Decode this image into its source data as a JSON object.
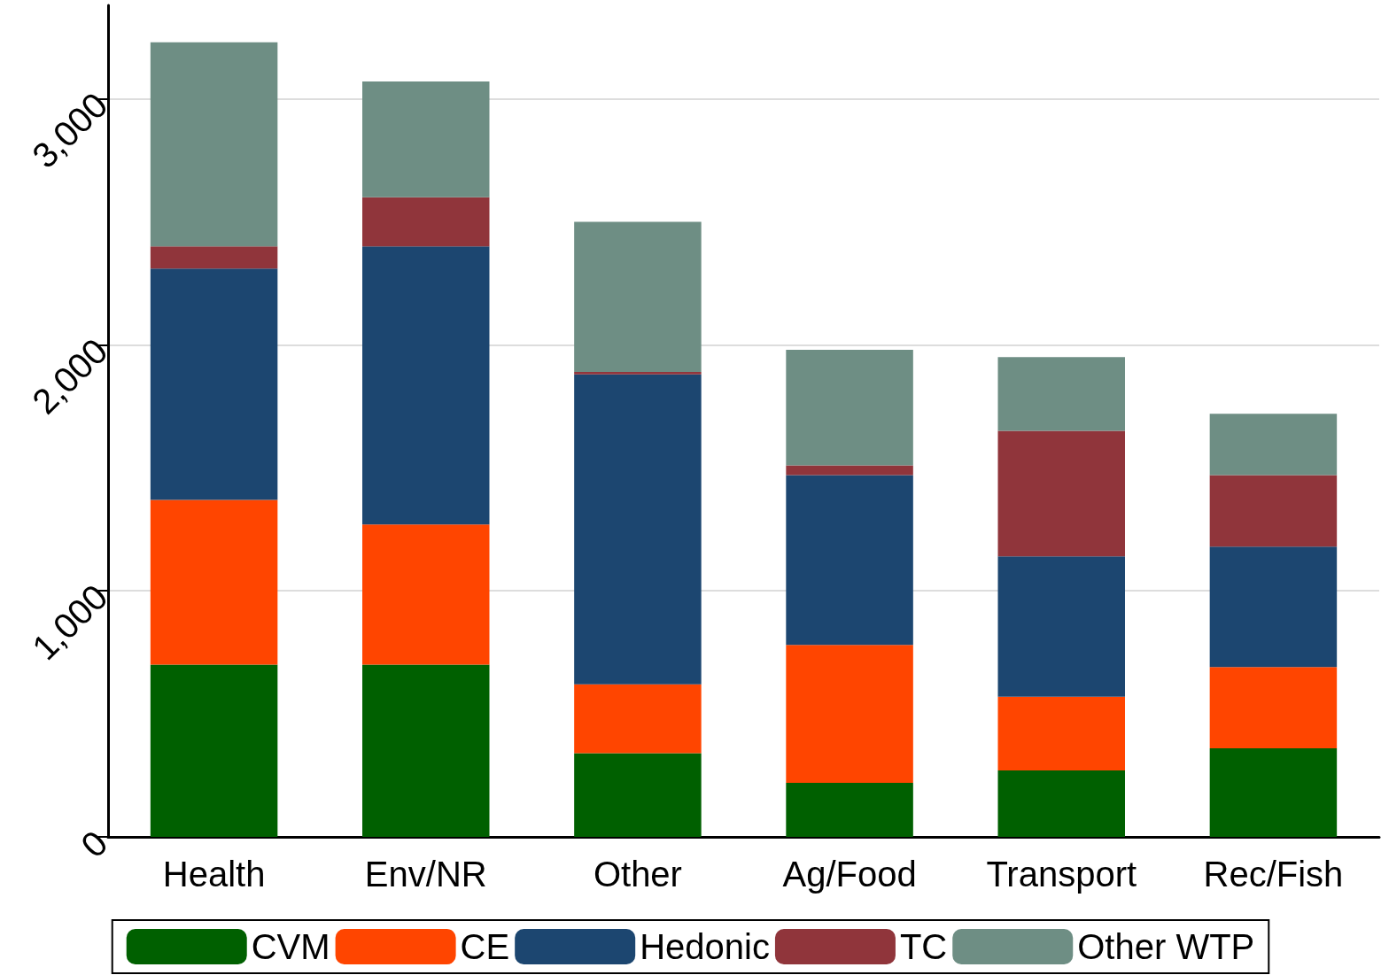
{
  "chart_data": {
    "type": "bar",
    "stacked": true,
    "categories": [
      "Health",
      "Env/NR",
      "Other",
      "Ag/Food",
      "Transport",
      "Rec/Fish"
    ],
    "series": [
      {
        "name": "CVM",
        "color": "#006000",
        "values": [
          700,
          700,
          340,
          220,
          270,
          360
        ]
      },
      {
        "name": "CE",
        "color": "#ff4500",
        "values": [
          670,
          570,
          280,
          560,
          300,
          330
        ]
      },
      {
        "name": "Hedonic",
        "color": "#1c4670",
        "values": [
          940,
          1130,
          1260,
          690,
          570,
          490
        ]
      },
      {
        "name": "TC",
        "color": "#90353b",
        "values": [
          90,
          200,
          10,
          40,
          510,
          290
        ]
      },
      {
        "name": "Other WTP",
        "color": "#6e8e84",
        "values": [
          830,
          470,
          610,
          470,
          300,
          250
        ]
      }
    ],
    "ylim": [
      0,
      3380
    ],
    "yticks": [
      0,
      {
        "value": 1000,
        "label": "1,000"
      },
      {
        "value": 2000,
        "label": "2,000"
      },
      {
        "value": 3000,
        "label": "3,000"
      }
    ],
    "grid": "y",
    "legend": "bottom"
  }
}
